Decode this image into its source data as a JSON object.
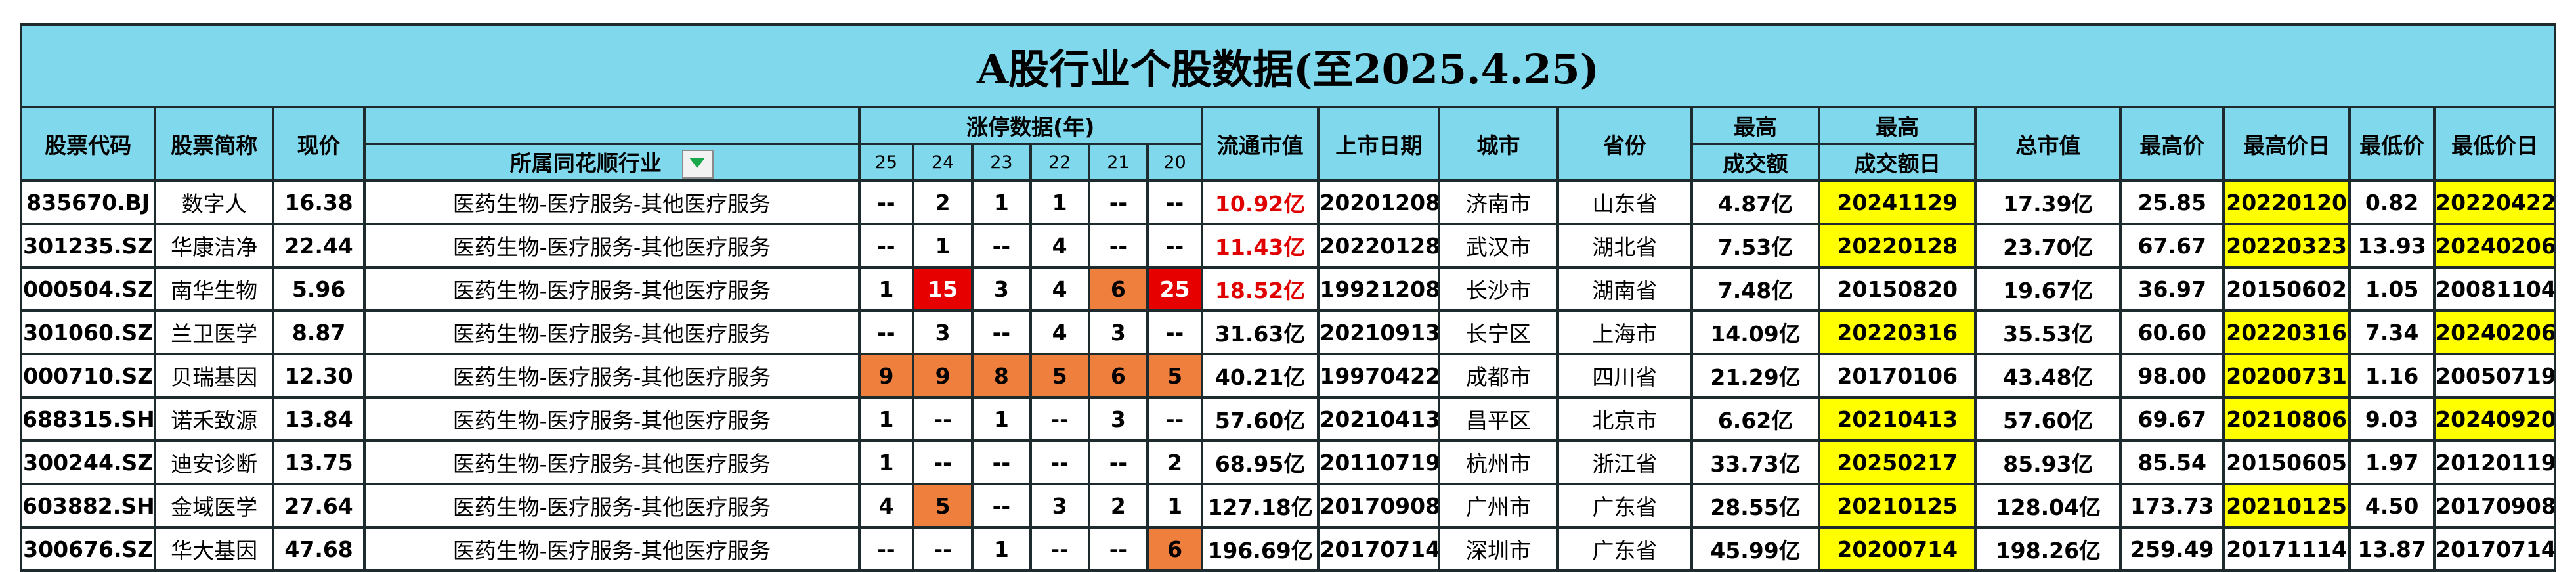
{
  "title": "A股行业个股数据(至2025.4.25)",
  "headers": {
    "code": "股票代码",
    "name": "股票简称",
    "price": "现价",
    "industry": "所属同花顺行业",
    "limit_group": "涨停数据(年)",
    "years": [
      "25",
      "24",
      "23",
      "22",
      "21",
      "20"
    ],
    "float_cap": "流通市值",
    "list_date": "上市日期",
    "city": "城市",
    "province": "省份",
    "max_turnover_1": "最高",
    "max_turnover_2": "成交额",
    "max_turnover_day_1": "最高",
    "max_turnover_day_2": "成交额日",
    "total_cap": "总市值",
    "high": "最高价",
    "high_day": "最高价日",
    "low": "最低价",
    "low_day": "最低价日"
  },
  "colors": {
    "header_bg": "#7fd8ec",
    "yellow": "#ffff00",
    "orange": "#ee7f3c",
    "red": "#e60000",
    "red_text": "#e00000",
    "filter_arrow": "#1aa64a"
  },
  "filter_icon": "dropdown-filter-icon",
  "rows": [
    {
      "code": "835670.BJ",
      "name": "数字人",
      "price": "16.38",
      "industry": "医药生物-医疗服务-其他医疗服务",
      "counts": [
        "--",
        "2",
        "1",
        "1",
        "--",
        "--"
      ],
      "count_fills": [
        "",
        "",
        "",
        "",
        "",
        ""
      ],
      "float_cap": "10.92亿",
      "float_cap_red": true,
      "list_date": "20201208",
      "city": "济南市",
      "province": "山东省",
      "max_turnover": "4.87亿",
      "max_turnover_day": "20241129",
      "max_turnover_day_yellow": true,
      "total_cap": "17.39亿",
      "high": "25.85",
      "high_day": "20220120",
      "high_day_yellow": true,
      "low": "0.82",
      "low_day": "20220422",
      "low_day_yellow": true
    },
    {
      "code": "301235.SZ",
      "name": "华康洁净",
      "price": "22.44",
      "industry": "医药生物-医疗服务-其他医疗服务",
      "counts": [
        "--",
        "1",
        "--",
        "4",
        "--",
        "--"
      ],
      "count_fills": [
        "",
        "",
        "",
        "",
        "",
        ""
      ],
      "float_cap": "11.43亿",
      "float_cap_red": true,
      "list_date": "20220128",
      "city": "武汉市",
      "province": "湖北省",
      "max_turnover": "7.53亿",
      "max_turnover_day": "20220128",
      "max_turnover_day_yellow": true,
      "total_cap": "23.70亿",
      "high": "67.67",
      "high_day": "20220323",
      "high_day_yellow": true,
      "low": "13.93",
      "low_day": "20240206",
      "low_day_yellow": true
    },
    {
      "code": "000504.SZ",
      "name": "南华生物",
      "price": "5.96",
      "industry": "医药生物-医疗服务-其他医疗服务",
      "counts": [
        "1",
        "15",
        "3",
        "4",
        "6",
        "25"
      ],
      "count_fills": [
        "",
        "red",
        "",
        "",
        "orange",
        "red"
      ],
      "float_cap": "18.52亿",
      "float_cap_red": true,
      "list_date": "19921208",
      "city": "长沙市",
      "province": "湖南省",
      "max_turnover": "7.48亿",
      "max_turnover_day": "20150820",
      "max_turnover_day_yellow": false,
      "total_cap": "19.67亿",
      "high": "36.97",
      "high_day": "20150602",
      "high_day_yellow": false,
      "low": "1.05",
      "low_day": "20081104",
      "low_day_yellow": false
    },
    {
      "code": "301060.SZ",
      "name": "兰卫医学",
      "price": "8.87",
      "industry": "医药生物-医疗服务-其他医疗服务",
      "counts": [
        "--",
        "3",
        "--",
        "4",
        "3",
        "--"
      ],
      "count_fills": [
        "",
        "",
        "",
        "",
        "",
        ""
      ],
      "float_cap": "31.63亿",
      "float_cap_red": false,
      "list_date": "20210913",
      "city": "长宁区",
      "province": "上海市",
      "max_turnover": "14.09亿",
      "max_turnover_day": "20220316",
      "max_turnover_day_yellow": true,
      "total_cap": "35.53亿",
      "high": "60.60",
      "high_day": "20220316",
      "high_day_yellow": true,
      "low": "7.34",
      "low_day": "20240206",
      "low_day_yellow": true
    },
    {
      "code": "000710.SZ",
      "name": "贝瑞基因",
      "price": "12.30",
      "industry": "医药生物-医疗服务-其他医疗服务",
      "counts": [
        "9",
        "9",
        "8",
        "5",
        "6",
        "5"
      ],
      "count_fills": [
        "orange",
        "orange",
        "orange",
        "orange",
        "orange",
        "orange"
      ],
      "float_cap": "40.21亿",
      "float_cap_red": false,
      "list_date": "19970422",
      "city": "成都市",
      "province": "四川省",
      "max_turnover": "21.29亿",
      "max_turnover_day": "20170106",
      "max_turnover_day_yellow": false,
      "total_cap": "43.48亿",
      "high": "98.00",
      "high_day": "20200731",
      "high_day_yellow": true,
      "low": "1.16",
      "low_day": "20050719",
      "low_day_yellow": false
    },
    {
      "code": "688315.SH",
      "name": "诺禾致源",
      "price": "13.84",
      "industry": "医药生物-医疗服务-其他医疗服务",
      "counts": [
        "1",
        "--",
        "1",
        "--",
        "3",
        "--"
      ],
      "count_fills": [
        "",
        "",
        "",
        "",
        "",
        ""
      ],
      "float_cap": "57.60亿",
      "float_cap_red": false,
      "list_date": "20210413",
      "city": "昌平区",
      "province": "北京市",
      "max_turnover": "6.62亿",
      "max_turnover_day": "20210413",
      "max_turnover_day_yellow": true,
      "total_cap": "57.60亿",
      "high": "69.67",
      "high_day": "20210806",
      "high_day_yellow": true,
      "low": "9.03",
      "low_day": "20240920",
      "low_day_yellow": true
    },
    {
      "code": "300244.SZ",
      "name": "迪安诊断",
      "price": "13.75",
      "industry": "医药生物-医疗服务-其他医疗服务",
      "counts": [
        "1",
        "--",
        "--",
        "--",
        "--",
        "2"
      ],
      "count_fills": [
        "",
        "",
        "",
        "",
        "",
        ""
      ],
      "float_cap": "68.95亿",
      "float_cap_red": false,
      "list_date": "20110719",
      "city": "杭州市",
      "province": "浙江省",
      "max_turnover": "33.73亿",
      "max_turnover_day": "20250217",
      "max_turnover_day_yellow": true,
      "total_cap": "85.93亿",
      "high": "85.54",
      "high_day": "20150605",
      "high_day_yellow": false,
      "low": "1.97",
      "low_day": "20120119",
      "low_day_yellow": false
    },
    {
      "code": "603882.SH",
      "name": "金域医学",
      "price": "27.64",
      "industry": "医药生物-医疗服务-其他医疗服务",
      "counts": [
        "4",
        "5",
        "--",
        "3",
        "2",
        "1"
      ],
      "count_fills": [
        "",
        "orange",
        "",
        "",
        "",
        ""
      ],
      "float_cap": "127.18亿",
      "float_cap_red": false,
      "list_date": "20170908",
      "city": "广州市",
      "province": "广东省",
      "max_turnover": "28.55亿",
      "max_turnover_day": "20210125",
      "max_turnover_day_yellow": true,
      "total_cap": "128.04亿",
      "high": "173.73",
      "high_day": "20210125",
      "high_day_yellow": true,
      "low": "4.50",
      "low_day": "20170908",
      "low_day_yellow": false
    },
    {
      "code": "300676.SZ",
      "name": "华大基因",
      "price": "47.68",
      "industry": "医药生物-医疗服务-其他医疗服务",
      "counts": [
        "--",
        "--",
        "1",
        "--",
        "--",
        "6"
      ],
      "count_fills": [
        "",
        "",
        "",
        "",
        "",
        "orange"
      ],
      "float_cap": "196.69亿",
      "float_cap_red": false,
      "list_date": "20170714",
      "city": "深圳市",
      "province": "广东省",
      "max_turnover": "45.99亿",
      "max_turnover_day": "20200714",
      "max_turnover_day_yellow": true,
      "total_cap": "198.26亿",
      "high": "259.49",
      "high_day": "20171114",
      "high_day_yellow": false,
      "low": "13.87",
      "low_day": "20170714",
      "low_day_yellow": false
    }
  ]
}
